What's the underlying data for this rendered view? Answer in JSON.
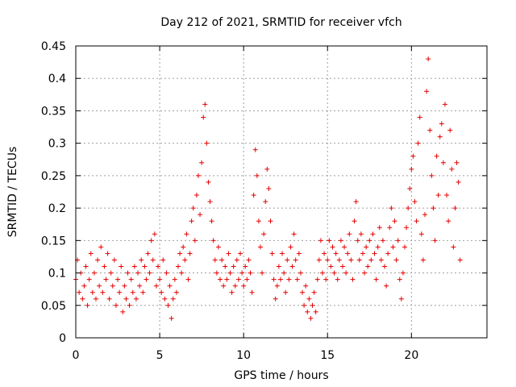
{
  "chart_data": {
    "type": "scatter",
    "title": "Day 212 of 2021, SRMTID for receiver vfch",
    "xlabel": "GPS time / hours",
    "ylabel": "SRMTID / TECUs",
    "xlim": [
      0,
      24.5
    ],
    "ylim": [
      0,
      0.45
    ],
    "xticks": [
      0,
      5,
      10,
      15,
      20
    ],
    "xtick_labels": [
      "0",
      "5",
      "10",
      "15",
      "20"
    ],
    "yticks": [
      0,
      0.05,
      0.1,
      0.15,
      0.2,
      0.25,
      0.3,
      0.35,
      0.4,
      0.45
    ],
    "ytick_labels": [
      "0",
      "0.05",
      "0.1",
      "0.15",
      "0.2",
      "0.25",
      "0.3",
      "0.35",
      "0.4",
      "0.45"
    ],
    "grid": true,
    "marker": "+",
    "color": "#e60000",
    "series": [
      {
        "name": "SRMTID",
        "points": [
          [
            0.0,
            0.09
          ],
          [
            0.1,
            0.12
          ],
          [
            0.2,
            0.07
          ],
          [
            0.3,
            0.1
          ],
          [
            0.4,
            0.06
          ],
          [
            0.5,
            0.08
          ],
          [
            0.6,
            0.11
          ],
          [
            0.7,
            0.05
          ],
          [
            0.8,
            0.09
          ],
          [
            0.9,
            0.13
          ],
          [
            1.0,
            0.07
          ],
          [
            1.1,
            0.1
          ],
          [
            1.2,
            0.06
          ],
          [
            1.3,
            0.12
          ],
          [
            1.4,
            0.08
          ],
          [
            1.5,
            0.14
          ],
          [
            1.6,
            0.07
          ],
          [
            1.7,
            0.11
          ],
          [
            1.8,
            0.09
          ],
          [
            1.9,
            0.13
          ],
          [
            2.0,
            0.06
          ],
          [
            2.1,
            0.1
          ],
          [
            2.2,
            0.08
          ],
          [
            2.3,
            0.12
          ],
          [
            2.4,
            0.05
          ],
          [
            2.5,
            0.09
          ],
          [
            2.6,
            0.07
          ],
          [
            2.7,
            0.11
          ],
          [
            2.8,
            0.04
          ],
          [
            2.9,
            0.08
          ],
          [
            3.0,
            0.06
          ],
          [
            3.1,
            0.1
          ],
          [
            3.2,
            0.05
          ],
          [
            3.3,
            0.09
          ],
          [
            3.4,
            0.07
          ],
          [
            3.5,
            0.11
          ],
          [
            3.6,
            0.06
          ],
          [
            3.7,
            0.1
          ],
          [
            3.8,
            0.08
          ],
          [
            3.9,
            0.12
          ],
          [
            4.0,
            0.07
          ],
          [
            4.1,
            0.11
          ],
          [
            4.2,
            0.09
          ],
          [
            4.3,
            0.13
          ],
          [
            4.4,
            0.1
          ],
          [
            4.5,
            0.15
          ],
          [
            4.6,
            0.12
          ],
          [
            4.7,
            0.16
          ],
          [
            4.8,
            0.08
          ],
          [
            4.9,
            0.11
          ],
          [
            5.0,
            0.09
          ],
          [
            5.1,
            0.07
          ],
          [
            5.2,
            0.12
          ],
          [
            5.3,
            0.06
          ],
          [
            5.4,
            0.1
          ],
          [
            5.5,
            0.05
          ],
          [
            5.6,
            0.08
          ],
          [
            5.7,
            0.03
          ],
          [
            5.8,
            0.06
          ],
          [
            5.9,
            0.09
          ],
          [
            6.0,
            0.07
          ],
          [
            6.1,
            0.11
          ],
          [
            6.2,
            0.13
          ],
          [
            6.3,
            0.1
          ],
          [
            6.4,
            0.14
          ],
          [
            6.5,
            0.12
          ],
          [
            6.6,
            0.16
          ],
          [
            6.7,
            0.09
          ],
          [
            6.8,
            0.13
          ],
          [
            6.9,
            0.18
          ],
          [
            7.0,
            0.2
          ],
          [
            7.1,
            0.15
          ],
          [
            7.2,
            0.22
          ],
          [
            7.3,
            0.25
          ],
          [
            7.4,
            0.19
          ],
          [
            7.5,
            0.27
          ],
          [
            7.6,
            0.34
          ],
          [
            7.7,
            0.36
          ],
          [
            7.8,
            0.3
          ],
          [
            7.9,
            0.24
          ],
          [
            8.0,
            0.21
          ],
          [
            8.1,
            0.18
          ],
          [
            8.2,
            0.15
          ],
          [
            8.3,
            0.12
          ],
          [
            8.4,
            0.1
          ],
          [
            8.5,
            0.14
          ],
          [
            8.6,
            0.09
          ],
          [
            8.7,
            0.12
          ],
          [
            8.8,
            0.08
          ],
          [
            8.9,
            0.11
          ],
          [
            9.0,
            0.09
          ],
          [
            9.1,
            0.13
          ],
          [
            9.2,
            0.1
          ],
          [
            9.3,
            0.07
          ],
          [
            9.4,
            0.11
          ],
          [
            9.5,
            0.08
          ],
          [
            9.6,
            0.12
          ],
          [
            9.7,
            0.09
          ],
          [
            9.8,
            0.13
          ],
          [
            9.9,
            0.1
          ],
          [
            10.0,
            0.08
          ],
          [
            10.1,
            0.11
          ],
          [
            10.2,
            0.09
          ],
          [
            10.3,
            0.12
          ],
          [
            10.4,
            0.1
          ],
          [
            10.5,
            0.07
          ],
          [
            10.6,
            0.22
          ],
          [
            10.7,
            0.29
          ],
          [
            10.8,
            0.25
          ],
          [
            10.9,
            0.18
          ],
          [
            11.0,
            0.14
          ],
          [
            11.1,
            0.1
          ],
          [
            11.2,
            0.16
          ],
          [
            11.3,
            0.21
          ],
          [
            11.4,
            0.26
          ],
          [
            11.5,
            0.23
          ],
          [
            11.6,
            0.18
          ],
          [
            11.7,
            0.13
          ],
          [
            11.8,
            0.09
          ],
          [
            11.9,
            0.06
          ],
          [
            12.0,
            0.08
          ],
          [
            12.1,
            0.11
          ],
          [
            12.2,
            0.09
          ],
          [
            12.3,
            0.13
          ],
          [
            12.4,
            0.1
          ],
          [
            12.5,
            0.07
          ],
          [
            12.6,
            0.12
          ],
          [
            12.7,
            0.09
          ],
          [
            12.8,
            0.14
          ],
          [
            12.9,
            0.11
          ],
          [
            13.0,
            0.16
          ],
          [
            13.1,
            0.12
          ],
          [
            13.2,
            0.09
          ],
          [
            13.3,
            0.13
          ],
          [
            13.4,
            0.1
          ],
          [
            13.5,
            0.07
          ],
          [
            13.6,
            0.05
          ],
          [
            13.7,
            0.08
          ],
          [
            13.8,
            0.04
          ],
          [
            13.9,
            0.06
          ],
          [
            14.0,
            0.03
          ],
          [
            14.1,
            0.05
          ],
          [
            14.2,
            0.07
          ],
          [
            14.3,
            0.04
          ],
          [
            14.4,
            0.09
          ],
          [
            14.5,
            0.12
          ],
          [
            14.6,
            0.15
          ],
          [
            14.7,
            0.1
          ],
          [
            14.8,
            0.13
          ],
          [
            14.9,
            0.09
          ],
          [
            15.0,
            0.12
          ],
          [
            15.1,
            0.15
          ],
          [
            15.2,
            0.11
          ],
          [
            15.3,
            0.14
          ],
          [
            15.4,
            0.1
          ],
          [
            15.5,
            0.13
          ],
          [
            15.6,
            0.09
          ],
          [
            15.7,
            0.12
          ],
          [
            15.8,
            0.15
          ],
          [
            15.9,
            0.11
          ],
          [
            16.0,
            0.14
          ],
          [
            16.1,
            0.1
          ],
          [
            16.2,
            0.13
          ],
          [
            16.3,
            0.16
          ],
          [
            16.4,
            0.12
          ],
          [
            16.5,
            0.09
          ],
          [
            16.6,
            0.18
          ],
          [
            16.7,
            0.21
          ],
          [
            16.8,
            0.15
          ],
          [
            16.9,
            0.12
          ],
          [
            17.0,
            0.16
          ],
          [
            17.1,
            0.13
          ],
          [
            17.2,
            0.1
          ],
          [
            17.3,
            0.14
          ],
          [
            17.4,
            0.11
          ],
          [
            17.5,
            0.15
          ],
          [
            17.6,
            0.12
          ],
          [
            17.7,
            0.16
          ],
          [
            17.8,
            0.13
          ],
          [
            17.9,
            0.09
          ],
          [
            18.0,
            0.14
          ],
          [
            18.1,
            0.17
          ],
          [
            18.2,
            0.12
          ],
          [
            18.3,
            0.15
          ],
          [
            18.4,
            0.11
          ],
          [
            18.5,
            0.08
          ],
          [
            18.6,
            0.13
          ],
          [
            18.7,
            0.17
          ],
          [
            18.8,
            0.2
          ],
          [
            18.9,
            0.14
          ],
          [
            19.0,
            0.18
          ],
          [
            19.1,
            0.12
          ],
          [
            19.2,
            0.15
          ],
          [
            19.3,
            0.09
          ],
          [
            19.4,
            0.06
          ],
          [
            19.5,
            0.1
          ],
          [
            19.6,
            0.14
          ],
          [
            19.7,
            0.17
          ],
          [
            19.8,
            0.2
          ],
          [
            19.9,
            0.23
          ],
          [
            20.0,
            0.26
          ],
          [
            20.1,
            0.28
          ],
          [
            20.2,
            0.21
          ],
          [
            20.3,
            0.18
          ],
          [
            20.4,
            0.3
          ],
          [
            20.5,
            0.34
          ],
          [
            20.6,
            0.16
          ],
          [
            20.7,
            0.12
          ],
          [
            20.8,
            0.19
          ],
          [
            20.9,
            0.38
          ],
          [
            21.0,
            0.43
          ],
          [
            21.1,
            0.32
          ],
          [
            21.2,
            0.25
          ],
          [
            21.3,
            0.2
          ],
          [
            21.4,
            0.15
          ],
          [
            21.5,
            0.28
          ],
          [
            21.6,
            0.22
          ],
          [
            21.7,
            0.31
          ],
          [
            21.8,
            0.33
          ],
          [
            21.9,
            0.27
          ],
          [
            22.0,
            0.36
          ],
          [
            22.1,
            0.22
          ],
          [
            22.2,
            0.18
          ],
          [
            22.3,
            0.32
          ],
          [
            22.4,
            0.26
          ],
          [
            22.5,
            0.14
          ],
          [
            22.6,
            0.2
          ],
          [
            22.7,
            0.27
          ],
          [
            22.8,
            0.24
          ],
          [
            22.9,
            0.12
          ]
        ]
      }
    ]
  }
}
